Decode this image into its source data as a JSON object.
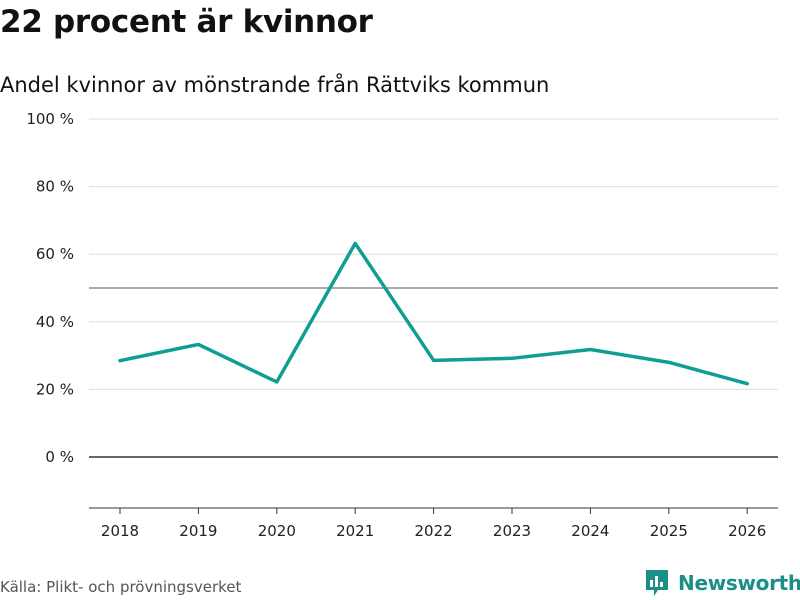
{
  "header": {
    "title": "22 procent är kvinnor",
    "subtitle": "Andel kvinnor av mönstrande från Rättviks kommun"
  },
  "footer": {
    "source": "Källa: Plikt- och prövningsverket",
    "brand": "Newsworthy"
  },
  "colors": {
    "line": "#0f9e94",
    "brand": "#1a8f86",
    "grid": "#dddddd",
    "reference": "#777777",
    "axis": "#333333"
  },
  "chart_data": {
    "type": "line",
    "title": "22 procent är kvinnor",
    "subtitle": "Andel kvinnor av mönstrande från Rättviks kommun",
    "xlabel": "",
    "ylabel": "",
    "categories": [
      "2018",
      "2019",
      "2020",
      "2021",
      "2022",
      "2023",
      "2024",
      "2025",
      "2026"
    ],
    "series": [
      {
        "name": "Andel kvinnor",
        "values": [
          28.5,
          33.3,
          22.2,
          63.2,
          28.6,
          29.2,
          31.8,
          28.0,
          21.7
        ]
      }
    ],
    "ylim": [
      -15,
      100
    ],
    "yticks": [
      0,
      20,
      40,
      60,
      80,
      100
    ],
    "ytick_labels": [
      "0 %",
      "20 %",
      "40 %",
      "60 %",
      "80 %",
      "100 %"
    ],
    "reference_line": 50,
    "grid": true
  }
}
